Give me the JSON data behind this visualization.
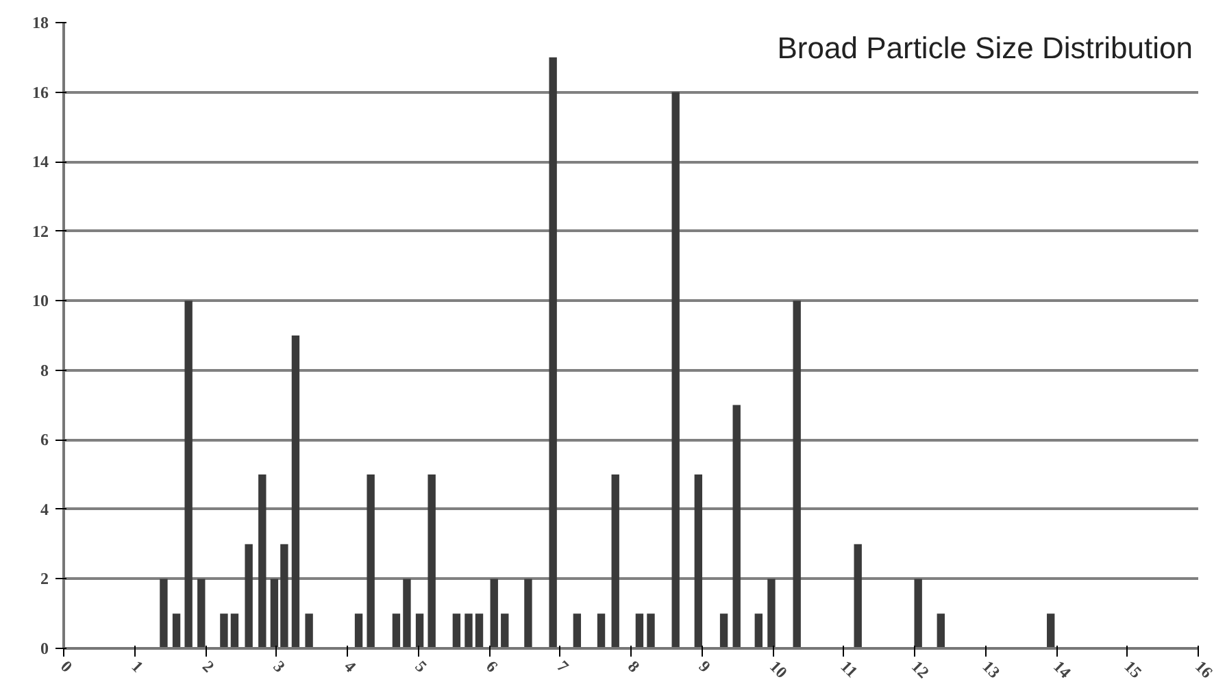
{
  "chart_data": {
    "type": "bar",
    "title": "Broad Particle Size Distribution",
    "x": [
      1.41,
      1.59,
      1.76,
      1.94,
      2.26,
      2.41,
      2.61,
      2.8,
      2.97,
      3.11,
      3.27,
      3.46,
      4.16,
      4.33,
      4.69,
      4.84,
      5.02,
      5.19,
      5.54,
      5.71,
      5.86,
      6.07,
      6.22,
      6.55,
      6.9,
      7.24,
      7.58,
      7.78,
      8.12,
      8.28,
      8.63,
      8.95,
      9.31,
      9.49,
      9.8,
      9.98,
      10.34,
      11.2,
      12.05,
      12.37,
      13.92
    ],
    "values": [
      2,
      1,
      10,
      2,
      1,
      1,
      3,
      5,
      2,
      3,
      9,
      1,
      1,
      5,
      1,
      2,
      1,
      5,
      1,
      1,
      1,
      2,
      1,
      2,
      17,
      1,
      1,
      5,
      1,
      1,
      16,
      5,
      1,
      7,
      1,
      2,
      10,
      3,
      2,
      1,
      1
    ],
    "color": "#3a3a3a",
    "xlim": [
      0,
      16
    ],
    "xticks": [
      0,
      1,
      2,
      3,
      4,
      5,
      6,
      7,
      8,
      9,
      10,
      11,
      12,
      13,
      14,
      15,
      16
    ],
    "ylim": [
      0,
      18
    ],
    "yticks": [
      0,
      2,
      4,
      6,
      8,
      10,
      12,
      14,
      16,
      18
    ],
    "grid": "y"
  }
}
